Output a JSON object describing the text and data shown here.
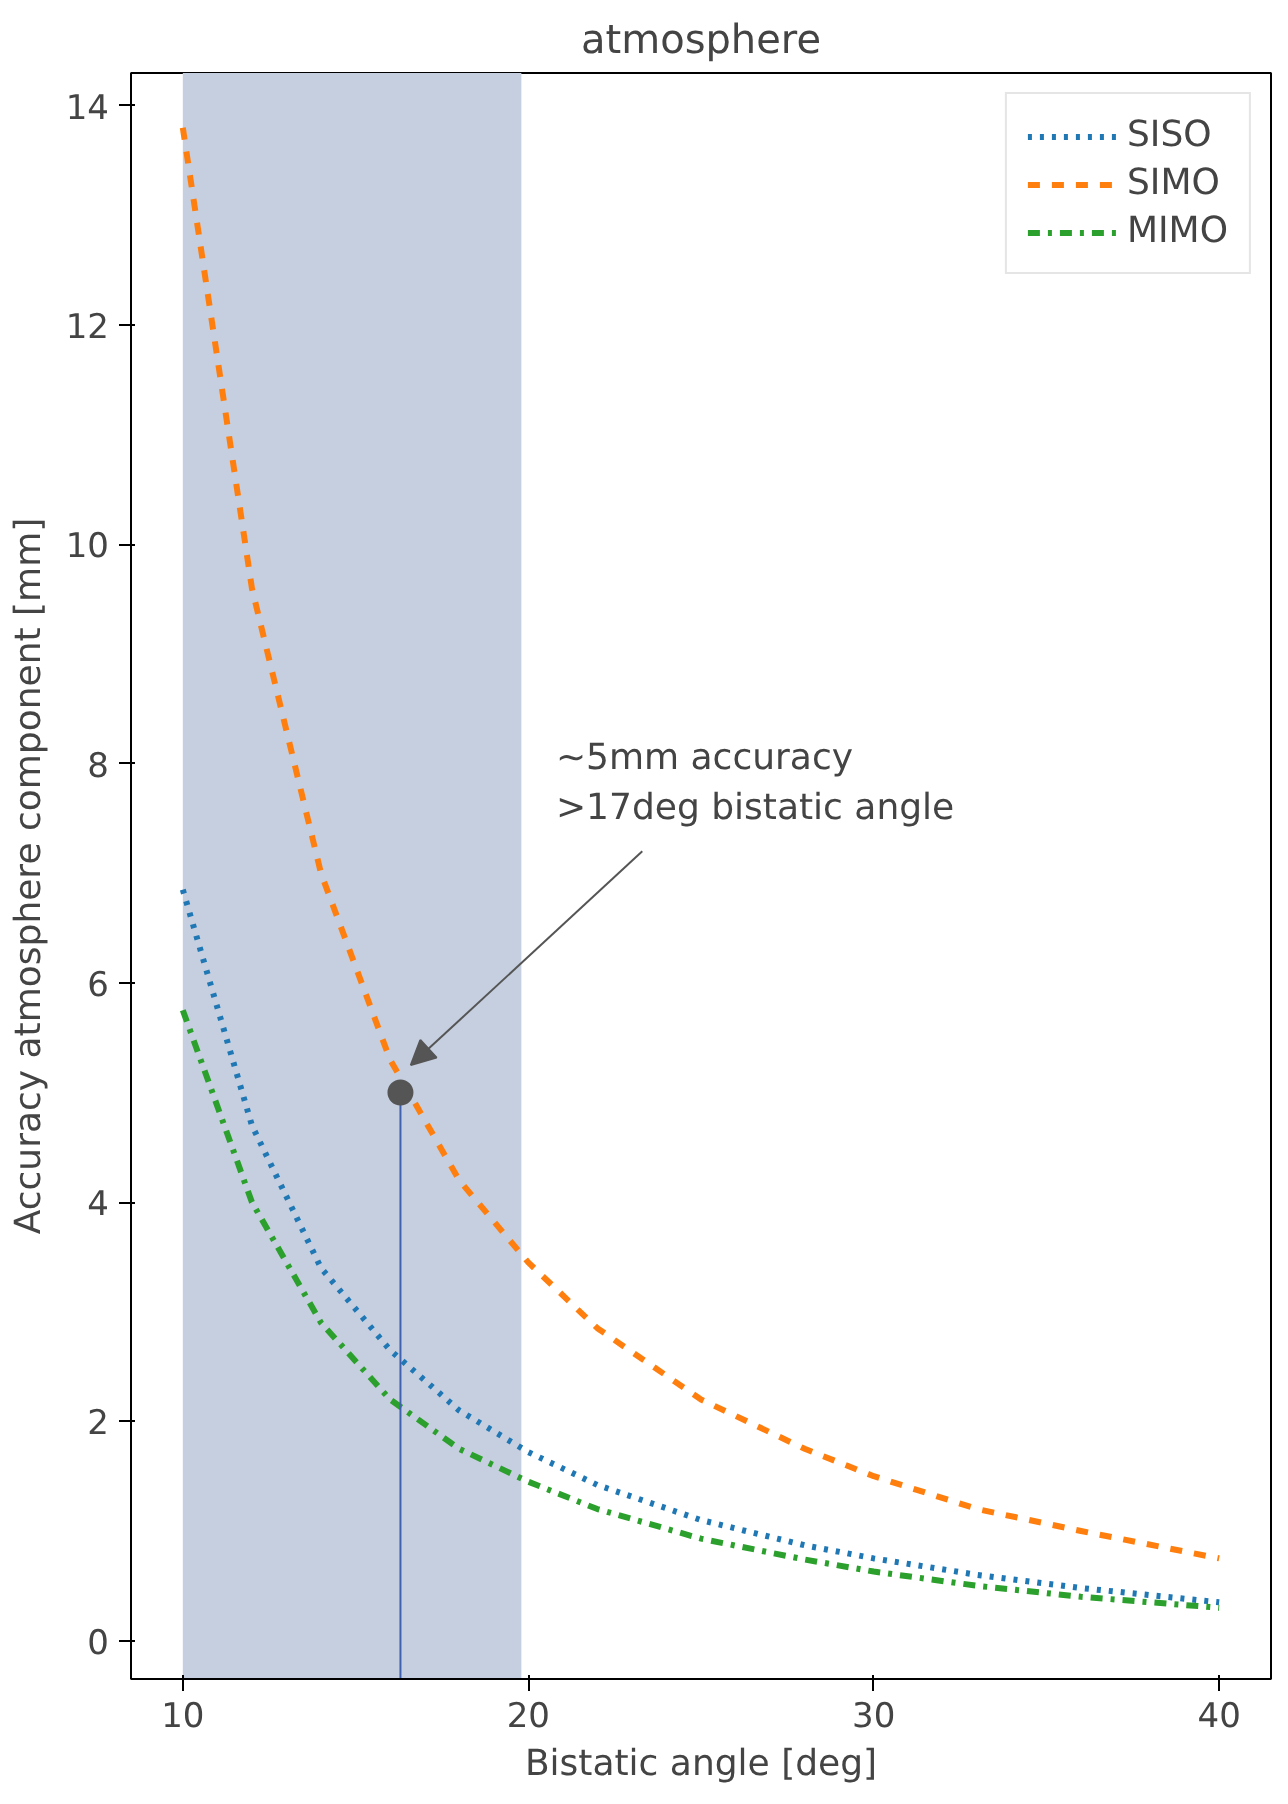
{
  "chart_data": {
    "type": "line",
    "title": "atmosphere",
    "xlabel": "Bistatic angle [deg]",
    "ylabel": "Accuracy atmosphere component [mm]",
    "x": [
      10,
      12,
      14,
      16,
      18,
      20,
      22,
      25,
      28,
      30,
      33,
      36,
      40
    ],
    "series": [
      {
        "name": "SISO",
        "color": "#1f77b4",
        "line_style": "dotted",
        "values": [
          6.85,
          4.7,
          3.4,
          2.65,
          2.1,
          1.72,
          1.42,
          1.1,
          0.87,
          0.75,
          0.6,
          0.48,
          0.35
        ]
      },
      {
        "name": "SIMO",
        "color": "#ff7f0e",
        "line_style": "dashed",
        "values": [
          13.8,
          9.6,
          7.0,
          5.3,
          4.2,
          3.45,
          2.85,
          2.2,
          1.75,
          1.5,
          1.2,
          1.0,
          0.75
        ]
      },
      {
        "name": "MIMO",
        "color": "#2ca02c",
        "line_style": "dashdot",
        "values": [
          5.75,
          4.0,
          2.9,
          2.2,
          1.75,
          1.45,
          1.2,
          0.93,
          0.74,
          0.63,
          0.5,
          0.4,
          0.3
        ]
      },
      {
        "type": "scatter",
        "color": "#555555",
        "marker": "circle",
        "x": [
          16.3
        ],
        "values": [
          5.0
        ]
      }
    ],
    "xlim": [
      8.5,
      41.5
    ],
    "ylim": [
      -0.35,
      14.3
    ],
    "xticks": [
      10,
      20,
      30,
      40
    ],
    "yticks": [
      0,
      2,
      4,
      6,
      8,
      10,
      12,
      14
    ],
    "bands": [
      {
        "axis": "x",
        "from": 10,
        "to": 19.8,
        "color": "#c6cfe0"
      }
    ],
    "ref_lines": [
      {
        "axis": "x",
        "value": 16.3,
        "color": "#4060b0"
      }
    ],
    "annotations": [
      "~5mm accuracy\n>17deg bistatic angle"
    ],
    "legend": "top right",
    "grid": false,
    "marker": "none"
  }
}
